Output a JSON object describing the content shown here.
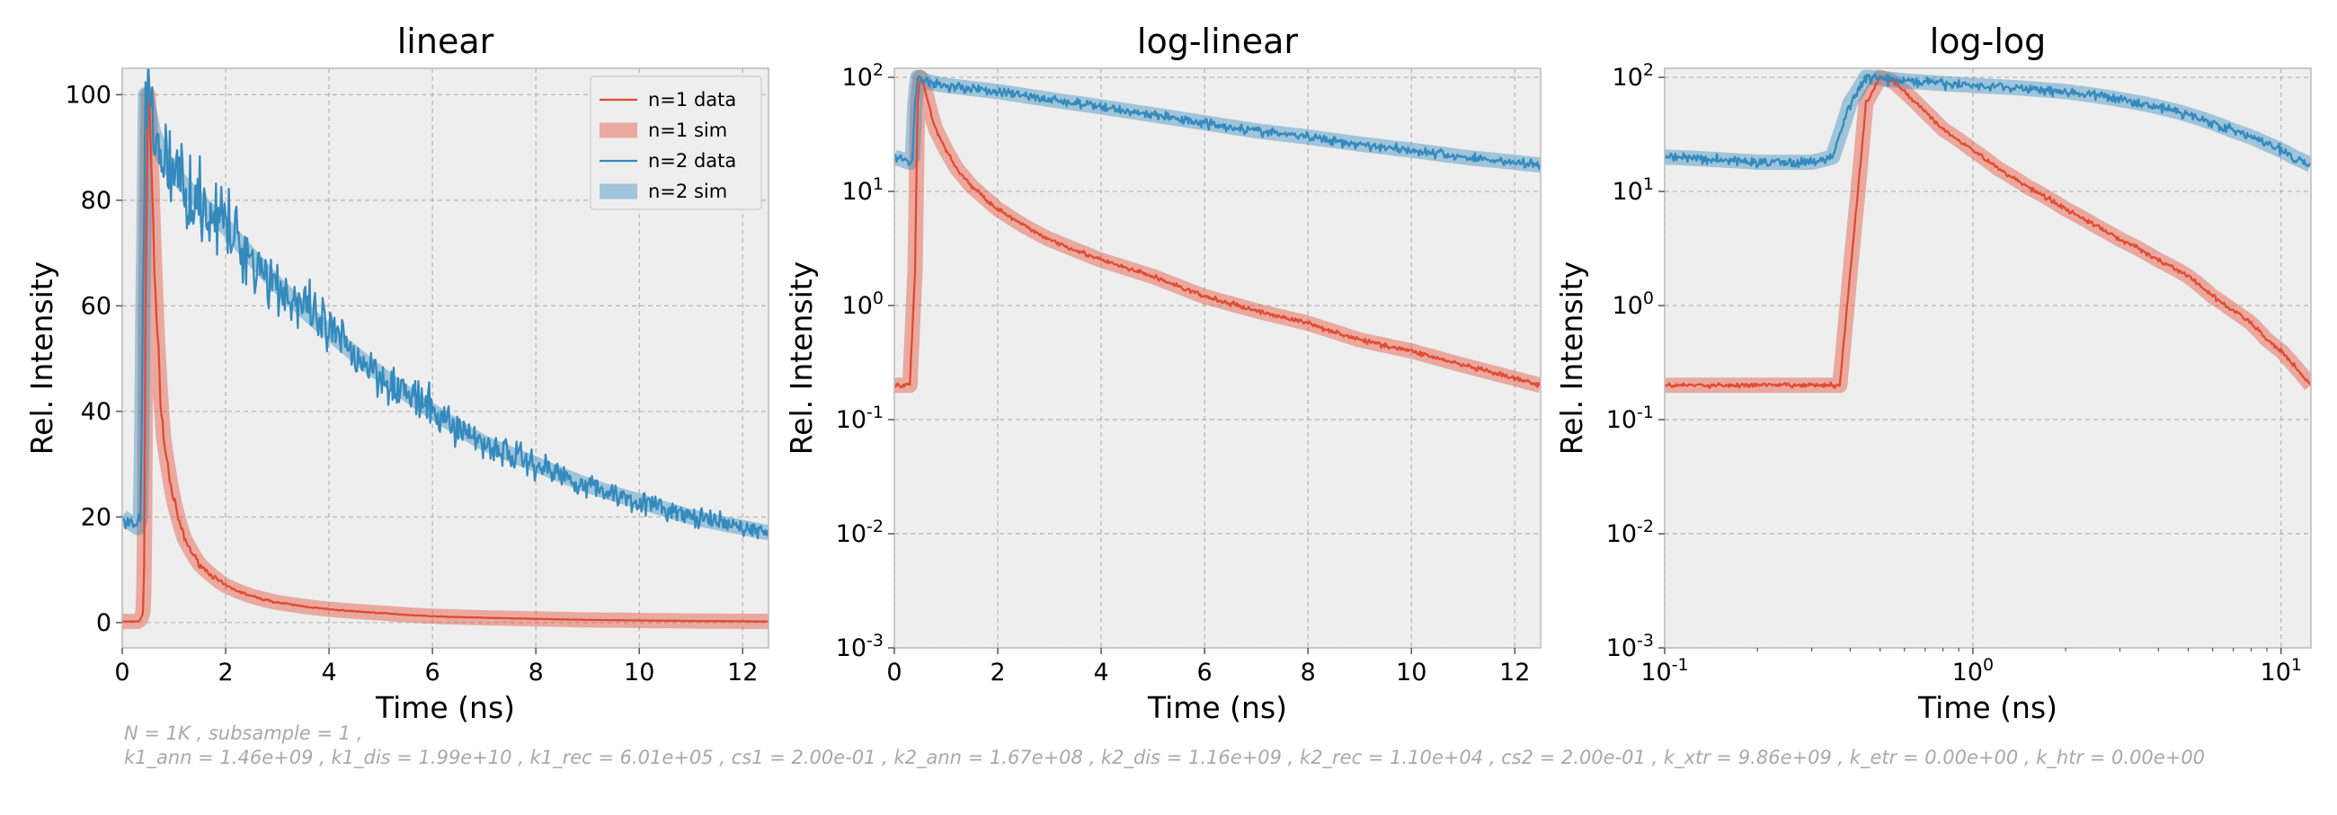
{
  "chart_data": [
    {
      "type": "line",
      "title": "linear",
      "xlabel": "Time (ns)",
      "ylabel": "Rel. Intensity",
      "xscale": "linear",
      "yscale": "linear",
      "xlim": [
        0,
        12.5
      ],
      "ylim": [
        -4.8,
        105
      ],
      "xticks": [
        0,
        2,
        4,
        6,
        8,
        10,
        12
      ],
      "xticklabels": [
        "0",
        "2",
        "4",
        "6",
        "8",
        "10",
        "12"
      ],
      "yticks": [
        0,
        20,
        40,
        60,
        80,
        100
      ],
      "yticklabels": [
        "0",
        "20",
        "40",
        "60",
        "80",
        "100"
      ],
      "grid": true,
      "legend": "top-right",
      "series": [
        {
          "name": "n=1 data",
          "style": "thin",
          "color": "#E24A33",
          "x": [
            0,
            0.3,
            0.4,
            0.45,
            0.5,
            0.55,
            0.6,
            0.7,
            0.8,
            1.0,
            1.2,
            1.5,
            2.0,
            2.5,
            3.0,
            4.0,
            5.0,
            6.0,
            7.0,
            8.0,
            9.0,
            10.0,
            11.0,
            12.5
          ],
          "y": [
            0.2,
            0.2,
            2,
            60,
            100,
            92,
            75,
            50,
            35,
            23,
            16,
            11,
            7,
            5,
            3.8,
            2.5,
            1.8,
            1.2,
            0.9,
            0.7,
            0.5,
            0.4,
            0.3,
            0.2
          ],
          "noise": 0.04
        },
        {
          "name": "n=1 sim",
          "style": "thick",
          "color": "#E24A33",
          "x": [
            0,
            0.3,
            0.4,
            0.45,
            0.5,
            0.55,
            0.6,
            0.7,
            0.8,
            1.0,
            1.2,
            1.5,
            2.0,
            2.5,
            3.0,
            4.0,
            5.0,
            6.0,
            7.0,
            8.0,
            9.0,
            10.0,
            11.0,
            12.5
          ],
          "y": [
            0.2,
            0.2,
            2,
            60,
            100,
            92,
            75,
            50,
            35,
            23,
            16,
            11,
            7,
            5,
            3.8,
            2.5,
            1.8,
            1.2,
            0.9,
            0.7,
            0.5,
            0.4,
            0.3,
            0.2
          ],
          "noise": 0
        },
        {
          "name": "n=2 data",
          "style": "thin",
          "color": "#348ABD",
          "x": [
            0,
            0.3,
            0.35,
            0.4,
            0.45,
            0.5,
            0.6,
            0.8,
            1.0,
            2.0,
            3.0,
            4.0,
            5.0,
            6.0,
            7.0,
            8.0,
            9.0,
            10.0,
            11.0,
            12.0,
            12.5
          ],
          "y": [
            20,
            18,
            20,
            60,
            100,
            98,
            93,
            88,
            85,
            75,
            64,
            55,
            47,
            40,
            34,
            30,
            26,
            23,
            20,
            18,
            17
          ],
          "noise": 0.08
        },
        {
          "name": "n=2 sim",
          "style": "thick",
          "color": "#348ABD",
          "x": [
            0,
            0.3,
            0.35,
            0.4,
            0.45,
            0.5,
            0.6,
            0.8,
            1.0,
            2.0,
            3.0,
            4.0,
            5.0,
            6.0,
            7.0,
            8.0,
            9.0,
            10.0,
            11.0,
            12.0,
            12.5
          ],
          "y": [
            20,
            18,
            20,
            60,
            100,
            98,
            93,
            88,
            85,
            75,
            64,
            55,
            47,
            40,
            34,
            30,
            26,
            23,
            20,
            18,
            17
          ],
          "noise": 0
        }
      ]
    },
    {
      "type": "line",
      "title": "log-linear",
      "xlabel": "Time (ns)",
      "ylabel": "Rel. Intensity",
      "xscale": "linear",
      "yscale": "log",
      "xlim": [
        0,
        12.5
      ],
      "ylim": [
        0.001,
        120
      ],
      "xticks": [
        0,
        2,
        4,
        6,
        8,
        10,
        12
      ],
      "xticklabels": [
        "0",
        "2",
        "4",
        "6",
        "8",
        "10",
        "12"
      ],
      "yticks": [
        0.001,
        0.01,
        0.1,
        1,
        10,
        100
      ],
      "yticklabels": [
        [
          "10",
          "-3"
        ],
        [
          "10",
          "-2"
        ],
        [
          "10",
          "-1"
        ],
        [
          "10",
          "0"
        ],
        [
          "10",
          "1"
        ],
        [
          "10",
          "2"
        ]
      ],
      "grid": true,
      "legend": "none",
      "series": [
        {
          "name": "n=1 data",
          "style": "thin",
          "color": "#E24A33",
          "x": [
            0,
            0.3,
            0.4,
            0.45,
            0.5,
            0.55,
            0.6,
            0.7,
            0.8,
            1.0,
            1.2,
            1.5,
            2.0,
            2.5,
            3.0,
            4.0,
            5.0,
            6.0,
            7.0,
            8.0,
            9.0,
            10.0,
            11.0,
            12.5
          ],
          "y": [
            0.2,
            0.2,
            2,
            60,
            100,
            92,
            75,
            50,
            35,
            23,
            16,
            11,
            7,
            5,
            3.8,
            2.5,
            1.8,
            1.2,
            0.9,
            0.7,
            0.5,
            0.4,
            0.3,
            0.2
          ],
          "noise": 0.04
        },
        {
          "name": "n=1 sim",
          "style": "thick",
          "color": "#E24A33",
          "x": [
            0,
            0.3,
            0.4,
            0.45,
            0.5,
            0.55,
            0.6,
            0.7,
            0.8,
            1.0,
            1.2,
            1.5,
            2.0,
            2.5,
            3.0,
            4.0,
            5.0,
            6.0,
            7.0,
            8.0,
            9.0,
            10.0,
            11.0,
            12.5
          ],
          "y": [
            0.2,
            0.2,
            2,
            60,
            100,
            92,
            75,
            50,
            35,
            23,
            16,
            11,
            7,
            5,
            3.8,
            2.5,
            1.8,
            1.2,
            0.9,
            0.7,
            0.5,
            0.4,
            0.3,
            0.2
          ],
          "noise": 0
        },
        {
          "name": "n=2 data",
          "style": "thin",
          "color": "#348ABD",
          "x": [
            0,
            0.3,
            0.35,
            0.4,
            0.45,
            0.5,
            0.6,
            0.8,
            1.0,
            2.0,
            3.0,
            4.0,
            5.0,
            6.0,
            7.0,
            8.0,
            9.0,
            10.0,
            11.0,
            12.0,
            12.5
          ],
          "y": [
            20,
            18,
            20,
            60,
            100,
            98,
            93,
            88,
            85,
            75,
            64,
            55,
            47,
            40,
            34,
            30,
            26,
            23,
            20,
            18,
            17
          ],
          "noise": 0.08
        },
        {
          "name": "n=2 sim",
          "style": "thick",
          "color": "#348ABD",
          "x": [
            0,
            0.3,
            0.35,
            0.4,
            0.45,
            0.5,
            0.6,
            0.8,
            1.0,
            2.0,
            3.0,
            4.0,
            5.0,
            6.0,
            7.0,
            8.0,
            9.0,
            10.0,
            11.0,
            12.0,
            12.5
          ],
          "y": [
            20,
            18,
            20,
            60,
            100,
            98,
            93,
            88,
            85,
            75,
            64,
            55,
            47,
            40,
            34,
            30,
            26,
            23,
            20,
            18,
            17
          ],
          "noise": 0
        }
      ]
    },
    {
      "type": "line",
      "title": "log-log",
      "xlabel": "Time (ns)",
      "ylabel": "Rel. Intensity",
      "xscale": "log",
      "yscale": "log",
      "xlim": [
        0.1,
        12.5
      ],
      "ylim": [
        0.001,
        120
      ],
      "xticks": [
        0.1,
        1,
        10
      ],
      "xticklabels": [
        [
          "10",
          "-1"
        ],
        [
          "10",
          "0"
        ],
        [
          "10",
          "1"
        ]
      ],
      "yticks": [
        0.001,
        0.01,
        0.1,
        1,
        10,
        100
      ],
      "yticklabels": [
        [
          "10",
          "-3"
        ],
        [
          "10",
          "-2"
        ],
        [
          "10",
          "-1"
        ],
        [
          "10",
          "0"
        ],
        [
          "10",
          "1"
        ],
        [
          "10",
          "2"
        ]
      ],
      "grid": true,
      "legend": "none",
      "series": [
        {
          "name": "n=1 data",
          "style": "thin",
          "color": "#E24A33",
          "x": [
            0.1,
            0.2,
            0.3,
            0.37,
            0.4,
            0.45,
            0.5,
            0.55,
            0.6,
            0.7,
            0.8,
            1.0,
            1.2,
            1.5,
            2.0,
            2.5,
            3.0,
            4.0,
            5.0,
            6.0,
            7.0,
            8.0,
            9.0,
            10.0,
            11.0,
            12.5
          ],
          "y": [
            0.2,
            0.2,
            0.2,
            0.2,
            2,
            60,
            100,
            92,
            75,
            50,
            35,
            23,
            16,
            11,
            7,
            5,
            3.8,
            2.5,
            1.8,
            1.2,
            0.9,
            0.7,
            0.5,
            0.4,
            0.3,
            0.2
          ],
          "noise": 0.04
        },
        {
          "name": "n=1 sim",
          "style": "thick",
          "color": "#E24A33",
          "x": [
            0.1,
            0.2,
            0.3,
            0.37,
            0.4,
            0.45,
            0.5,
            0.55,
            0.6,
            0.7,
            0.8,
            1.0,
            1.2,
            1.5,
            2.0,
            2.5,
            3.0,
            4.0,
            5.0,
            6.0,
            7.0,
            8.0,
            9.0,
            10.0,
            11.0,
            12.5
          ],
          "y": [
            0.2,
            0.2,
            0.2,
            0.2,
            2,
            60,
            100,
            92,
            75,
            50,
            35,
            23,
            16,
            11,
            7,
            5,
            3.8,
            2.5,
            1.8,
            1.2,
            0.9,
            0.7,
            0.5,
            0.4,
            0.3,
            0.2
          ],
          "noise": 0
        },
        {
          "name": "n=2 data",
          "style": "thin",
          "color": "#348ABD",
          "x": [
            0.1,
            0.2,
            0.3,
            0.35,
            0.4,
            0.45,
            0.5,
            0.6,
            0.8,
            1.0,
            2.0,
            3.0,
            4.0,
            5.0,
            6.0,
            7.0,
            8.0,
            9.0,
            10.0,
            11.0,
            12.0,
            12.5
          ],
          "y": [
            20,
            18,
            18,
            20,
            60,
            100,
            98,
            93,
            88,
            85,
            75,
            64,
            55,
            47,
            40,
            34,
            30,
            26,
            23,
            20,
            18,
            17
          ],
          "noise": 0.08
        },
        {
          "name": "n=2 sim",
          "style": "thick",
          "color": "#348ABD",
          "x": [
            0.1,
            0.2,
            0.3,
            0.35,
            0.4,
            0.45,
            0.5,
            0.6,
            0.8,
            1.0,
            2.0,
            3.0,
            4.0,
            5.0,
            6.0,
            7.0,
            8.0,
            9.0,
            10.0,
            11.0,
            12.0,
            12.5
          ],
          "y": [
            20,
            18,
            18,
            20,
            60,
            100,
            98,
            93,
            88,
            85,
            75,
            64,
            55,
            47,
            40,
            34,
            30,
            26,
            23,
            20,
            18,
            17
          ],
          "noise": 0
        }
      ]
    }
  ],
  "footer": {
    "line1": "N = 1K , subsample = 1 ,",
    "line2": "k1_ann = 1.46e+09 , k1_dis = 1.99e+10 , k1_rec = 6.01e+05 , cs1 = 2.00e-01 , k2_ann = 1.67e+08 , k2_dis = 1.16e+09 , k2_rec = 1.10e+04 , cs2 = 2.00e-01 , k_xtr = 9.86e+09 , k_etr = 0.00e+00 , k_htr = 0.00e+00"
  },
  "colors": {
    "background": "#EEEEEE",
    "grid": "#B2B2B2",
    "n1": "#E24A33",
    "n2": "#348ABD"
  }
}
